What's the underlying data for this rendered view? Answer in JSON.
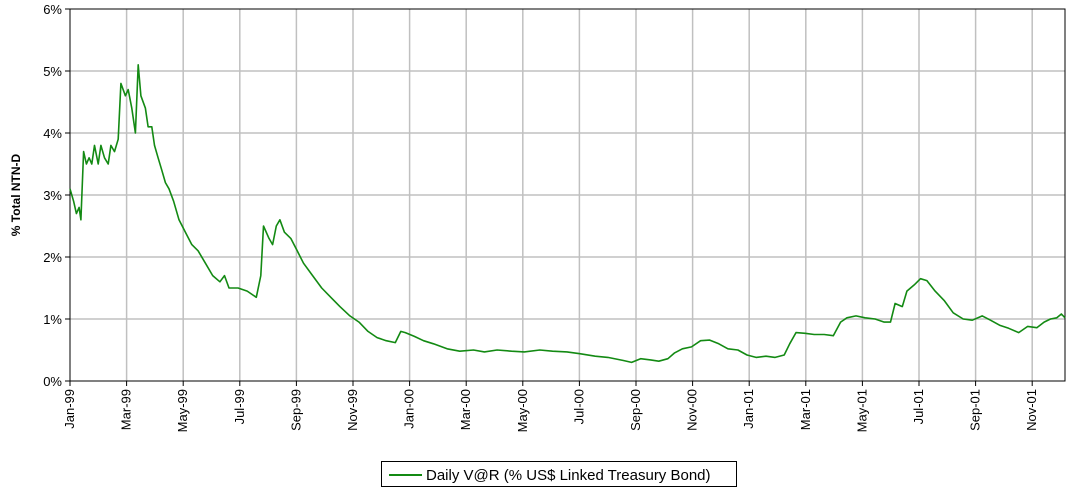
{
  "chart_data": {
    "type": "line",
    "title": "",
    "ylabel": "% Total NTN-D",
    "xlabel": "",
    "x_tick_labels": [
      "Jan-99",
      "Mar-99",
      "May-99",
      "Jul-99",
      "Sep-99",
      "Nov-99",
      "Jan-00",
      "Mar-00",
      "May-00",
      "Jul-00",
      "Sep-00",
      "Nov-00",
      "Jan-01",
      "Mar-01",
      "May-01",
      "Jul-01",
      "Sep-01",
      "Nov-01"
    ],
    "y_tick_labels": [
      "0%",
      "1%",
      "2%",
      "3%",
      "4%",
      "5%",
      "6%"
    ],
    "ylim": [
      0,
      6
    ],
    "xlim": [
      "1999-01-01",
      "2001-12-31"
    ],
    "grid": true,
    "legend_position": "bottom-center",
    "series": [
      {
        "name": "Daily V@R (% US$ Linked Treasury Bond)",
        "color": "#138a13",
        "points": [
          [
            "1999-01-01",
            3.1
          ],
          [
            "1999-01-05",
            2.9
          ],
          [
            "1999-01-08",
            2.7
          ],
          [
            "1999-01-11",
            2.8
          ],
          [
            "1999-01-13",
            2.6
          ],
          [
            "1999-01-16",
            3.7
          ],
          [
            "1999-01-19",
            3.5
          ],
          [
            "1999-01-22",
            3.6
          ],
          [
            "1999-01-25",
            3.5
          ],
          [
            "1999-01-28",
            3.8
          ],
          [
            "1999-02-01",
            3.5
          ],
          [
            "1999-02-04",
            3.8
          ],
          [
            "1999-02-08",
            3.6
          ],
          [
            "1999-02-12",
            3.5
          ],
          [
            "1999-02-15",
            3.8
          ],
          [
            "1999-02-19",
            3.7
          ],
          [
            "1999-02-23",
            3.9
          ],
          [
            "1999-02-26",
            4.8
          ],
          [
            "1999-03-03",
            4.6
          ],
          [
            "1999-03-06",
            4.7
          ],
          [
            "1999-03-10",
            4.4
          ],
          [
            "1999-03-14",
            4.0
          ],
          [
            "1999-03-17",
            5.1
          ],
          [
            "1999-03-20",
            4.6
          ],
          [
            "1999-03-25",
            4.4
          ],
          [
            "1999-03-28",
            4.1
          ],
          [
            "1999-04-01",
            4.1
          ],
          [
            "1999-04-04",
            3.8
          ],
          [
            "1999-04-08",
            3.6
          ],
          [
            "1999-04-12",
            3.4
          ],
          [
            "1999-04-16",
            3.2
          ],
          [
            "1999-04-20",
            3.1
          ],
          [
            "1999-04-25",
            2.9
          ],
          [
            "1999-05-01",
            2.6
          ],
          [
            "1999-05-08",
            2.4
          ],
          [
            "1999-05-15",
            2.2
          ],
          [
            "1999-05-22",
            2.1
          ],
          [
            "1999-05-30",
            1.9
          ],
          [
            "1999-06-07",
            1.7
          ],
          [
            "1999-06-15",
            1.6
          ],
          [
            "1999-06-20",
            1.7
          ],
          [
            "1999-06-25",
            1.5
          ],
          [
            "1999-07-05",
            1.5
          ],
          [
            "1999-07-15",
            1.45
          ],
          [
            "1999-07-25",
            1.35
          ],
          [
            "1999-07-30",
            1.7
          ],
          [
            "1999-08-02",
            2.5
          ],
          [
            "1999-08-08",
            2.3
          ],
          [
            "1999-08-12",
            2.2
          ],
          [
            "1999-08-16",
            2.5
          ],
          [
            "1999-08-20",
            2.6
          ],
          [
            "1999-08-25",
            2.4
          ],
          [
            "1999-09-01",
            2.3
          ],
          [
            "1999-09-08",
            2.1
          ],
          [
            "1999-09-15",
            1.9
          ],
          [
            "1999-09-25",
            1.7
          ],
          [
            "1999-10-05",
            1.5
          ],
          [
            "1999-10-15",
            1.35
          ],
          [
            "1999-10-25",
            1.2
          ],
          [
            "1999-11-05",
            1.05
          ],
          [
            "1999-11-15",
            0.95
          ],
          [
            "1999-11-25",
            0.8
          ],
          [
            "1999-12-05",
            0.7
          ],
          [
            "1999-12-15",
            0.65
          ],
          [
            "1999-12-25",
            0.62
          ],
          [
            "1999-12-31",
            0.8
          ],
          [
            "2000-01-05",
            0.78
          ],
          [
            "2000-01-15",
            0.72
          ],
          [
            "2000-01-25",
            0.65
          ],
          [
            "2000-02-05",
            0.6
          ],
          [
            "2000-02-20",
            0.52
          ],
          [
            "2000-03-05",
            0.48
          ],
          [
            "2000-03-20",
            0.5
          ],
          [
            "2000-04-01",
            0.47
          ],
          [
            "2000-04-15",
            0.5
          ],
          [
            "2000-05-01",
            0.48
          ],
          [
            "2000-05-15",
            0.47
          ],
          [
            "2000-06-01",
            0.5
          ],
          [
            "2000-06-15",
            0.48
          ],
          [
            "2000-07-01",
            0.47
          ],
          [
            "2000-07-15",
            0.44
          ],
          [
            "2000-08-01",
            0.4
          ],
          [
            "2000-08-15",
            0.38
          ],
          [
            "2000-09-01",
            0.33
          ],
          [
            "2000-09-10",
            0.3
          ],
          [
            "2000-09-20",
            0.36
          ],
          [
            "2000-10-01",
            0.34
          ],
          [
            "2000-10-10",
            0.32
          ],
          [
            "2000-10-20",
            0.36
          ],
          [
            "2000-10-27",
            0.45
          ],
          [
            "2000-11-05",
            0.52
          ],
          [
            "2000-11-15",
            0.55
          ],
          [
            "2000-11-25",
            0.65
          ],
          [
            "2000-12-05",
            0.66
          ],
          [
            "2000-12-15",
            0.6
          ],
          [
            "2000-12-25",
            0.52
          ],
          [
            "2001-01-05",
            0.5
          ],
          [
            "2001-01-15",
            0.42
          ],
          [
            "2001-01-25",
            0.38
          ],
          [
            "2001-02-05",
            0.4
          ],
          [
            "2001-02-15",
            0.38
          ],
          [
            "2001-02-25",
            0.42
          ],
          [
            "2001-03-03",
            0.6
          ],
          [
            "2001-03-10",
            0.78
          ],
          [
            "2001-03-20",
            0.77
          ],
          [
            "2001-03-30",
            0.75
          ],
          [
            "2001-04-10",
            0.75
          ],
          [
            "2001-04-20",
            0.73
          ],
          [
            "2001-04-28",
            0.95
          ],
          [
            "2001-05-05",
            1.02
          ],
          [
            "2001-05-15",
            1.05
          ],
          [
            "2001-05-25",
            1.02
          ],
          [
            "2001-06-05",
            1.0
          ],
          [
            "2001-06-15",
            0.95
          ],
          [
            "2001-06-22",
            0.95
          ],
          [
            "2001-06-27",
            1.25
          ],
          [
            "2001-07-05",
            1.2
          ],
          [
            "2001-07-10",
            1.45
          ],
          [
            "2001-07-18",
            1.55
          ],
          [
            "2001-07-25",
            1.65
          ],
          [
            "2001-08-01",
            1.62
          ],
          [
            "2001-08-10",
            1.45
          ],
          [
            "2001-08-20",
            1.3
          ],
          [
            "2001-08-30",
            1.1
          ],
          [
            "2001-09-10",
            1.0
          ],
          [
            "2001-09-20",
            0.98
          ],
          [
            "2001-10-01",
            1.05
          ],
          [
            "2001-10-10",
            0.98
          ],
          [
            "2001-10-20",
            0.9
          ],
          [
            "2001-10-30",
            0.85
          ],
          [
            "2001-11-10",
            0.78
          ],
          [
            "2001-11-20",
            0.88
          ],
          [
            "2001-11-30",
            0.86
          ],
          [
            "2001-12-08",
            0.95
          ],
          [
            "2001-12-15",
            1.0
          ],
          [
            "2001-12-22",
            1.02
          ],
          [
            "2001-12-27",
            1.08
          ],
          [
            "2001-12-31",
            1.02
          ]
        ]
      }
    ]
  }
}
